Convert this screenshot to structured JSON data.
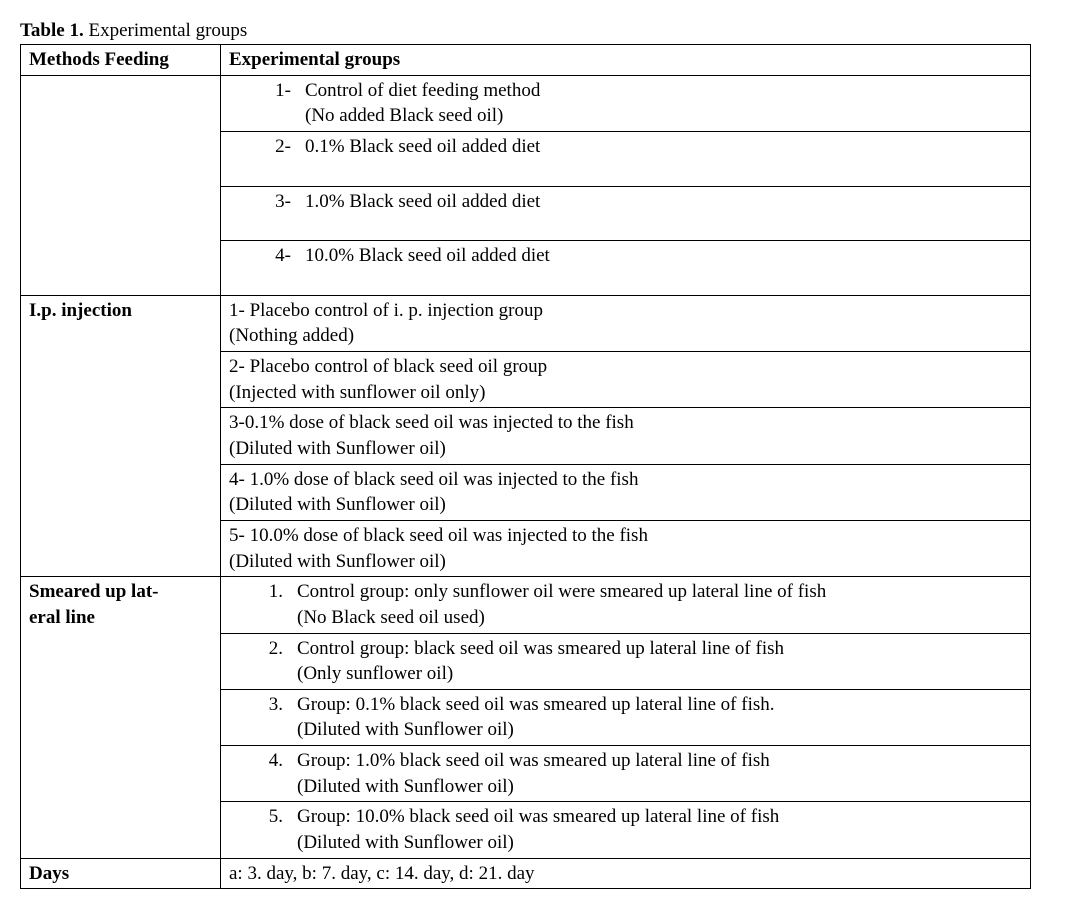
{
  "caption_bold": "Table 1.",
  "caption_rest": " Experimental groups",
  "header_methods": "Methods Feeding",
  "header_groups": "Experimental groups",
  "feeding": {
    "r1_num": "1-",
    "r1_txt": "Control of diet feeding method",
    "r1_sub": "(No added Black seed oil)",
    "r2_num": "2-",
    "r2_txt": "0.1% Black seed oil added diet",
    "r3_num": "3-",
    "r3_txt": "1.0% Black seed oil added diet",
    "r4_num": "4-",
    "r4_txt": "10.0%   Black seed oil added diet"
  },
  "ip_label": "I.p. injection",
  "ip": {
    "r1a": "1- Placebo control of i. p. injection group",
    "r1b": "(Nothing added)",
    "r2a": "2- Placebo control of black seed oil group",
    "r2b": "(Injected with sunflower oil only)",
    "r3a": "3-0.1%  dose of black seed oil was injected to the fish",
    "r3b": "(Diluted with Sunflower oil)",
    "r4a": "4- 1.0%  dose of black seed oil was injected to the fish",
    "r4b": "(Diluted with Sunflower oil)",
    "r5a": "5- 10.0%  dose of black seed oil was injected to the fish",
    "r5b": "(Diluted with Sunflower oil)"
  },
  "smear_label_l1": "Smeared up lat-",
  "smear_label_l2": "eral line",
  "smear": {
    "r1_num": "1.",
    "r1_txt": "Control group: only sunflower oil were smeared up lateral line of fish",
    "r1_sub": "(No  Black seed oil used)",
    "r2_num": "2.",
    "r2_txt": "Control group: black seed oil was smeared up lateral line of fish",
    "r2_sub": "(Only sunflower oil)",
    "r3_num": "3.",
    "r3_txt": "Group: 0.1% black seed oil was smeared up lateral line of fish.",
    "r3_sub": "(Diluted with Sunflower oil)",
    "r4_num": "4.",
    "r4_txt": "Group: 1.0%  black seed oil was smeared up lateral line of fish",
    "r4_sub": "(Diluted with Sunflower oil)",
    "r5_num": "5.",
    "r5_txt": "Group: 10.0%  black seed oil was smeared up lateral line of fish",
    "r5_sub": "(Diluted with Sunflower oil)"
  },
  "days_label": "Days",
  "days_value": "a: 3. day, b: 7. day, c: 14. day, d: 21. day"
}
